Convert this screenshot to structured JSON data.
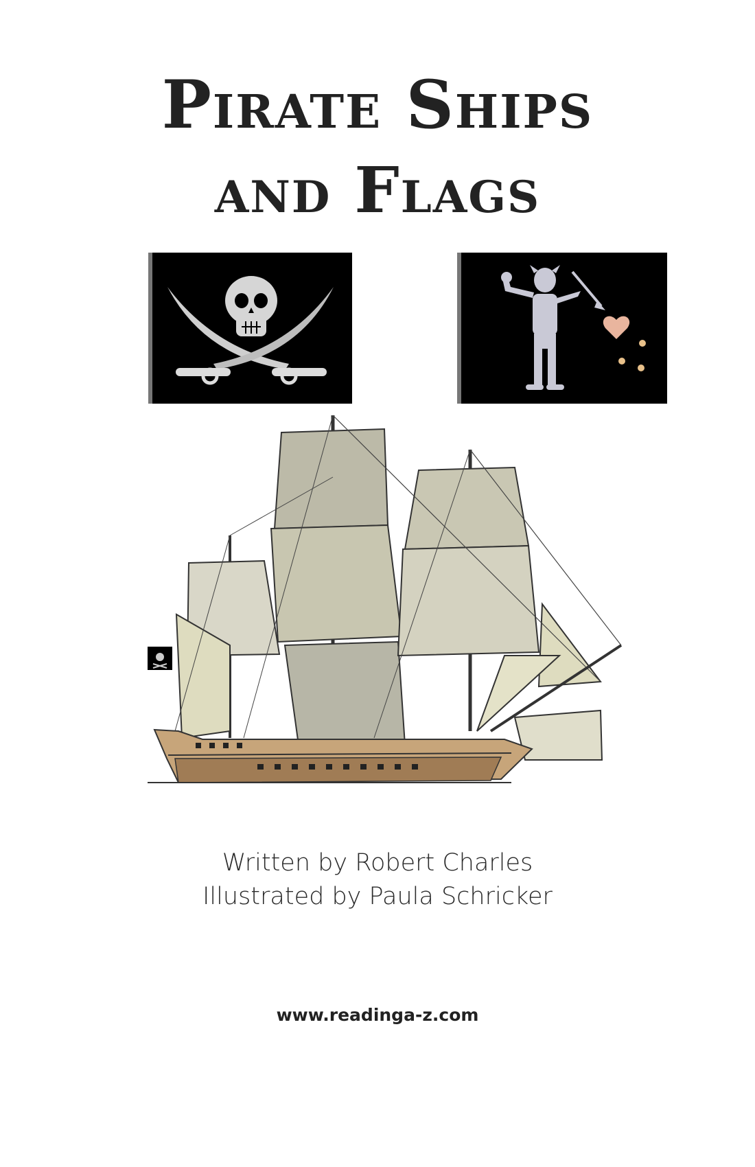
{
  "cover": {
    "title_line1": "Pirate Ships",
    "title_line2": "and Flags"
  },
  "illustrations": {
    "flag_left_icon": "skull-and-crossed-swords-icon",
    "flag_right_icon": "skeleton-with-spear-and-heart-icon",
    "ship_icon": "pirate-ship-icon",
    "flag_color": "#000000",
    "sail_color": "#d9d8c2",
    "hull_color": "#c7a57a"
  },
  "credits": {
    "author": "Written by Robert Charles",
    "illustrator": "Illustrated by Paula Schricker"
  },
  "footer": {
    "url": "www.readinga-z.com"
  }
}
